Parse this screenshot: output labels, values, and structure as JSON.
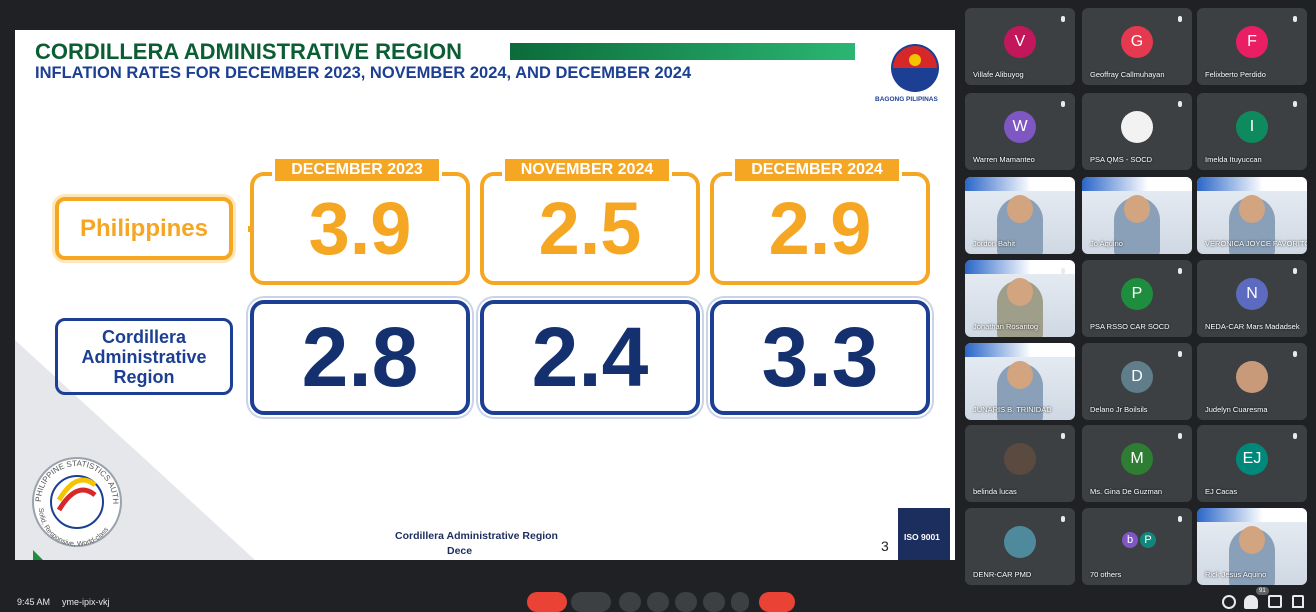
{
  "slide": {
    "title": "CORDILLERA ADMINISTRATIVE REGION",
    "subtitle": "INFLATION RATES FOR DECEMBER 2023, NOVEMBER 2024, AND DECEMBER 2024",
    "logo_caption": "BAGONG PILIPINAS",
    "columns": [
      "DECEMBER 2023",
      "NOVEMBER 2024",
      "DECEMBER 2024"
    ],
    "rows": [
      {
        "label": "Philippines",
        "values": [
          3.9,
          2.5,
          2.9
        ]
      },
      {
        "label": "Cordillera Administrative Region",
        "values": [
          2.8,
          2.4,
          3.3
        ]
      }
    ],
    "seal_text": "PHILIPPINE STATISTICS AUTHORITY",
    "seal_motto": "Solid, Responsive, World-class",
    "footer": "Cordillera Administrative Region",
    "footer_date": "Dece",
    "page_number": 3,
    "certification": "ISO 9001"
  },
  "participants": [
    {
      "name": "Villafe Alibuyog",
      "initial": "V",
      "color": "#c2185b"
    },
    {
      "name": "Geoffray Callmuhayan",
      "initial": "G",
      "color": "#e53950"
    },
    {
      "name": "Felixberto Perdido",
      "initial": "F",
      "color": "#e91e63"
    },
    {
      "name": "Warren Mamanteo",
      "initial": "W",
      "color": "#7e57c2"
    },
    {
      "name": "PSA QMS - SOCD",
      "color": "#f2f2f2"
    },
    {
      "name": "Imelda Ituyuccan",
      "initial": "I",
      "color": "#0f8a5f"
    },
    {
      "name": "Jordon Bahit",
      "color": "#8aa0b8"
    },
    {
      "name": "Jo Aquino",
      "color": "#8aa0b8"
    },
    {
      "name": "VERONICA JOYCE FAVORITO",
      "color": "#8aa0b8"
    },
    {
      "name": "Jonathan Rosantog",
      "color": "#9e9e8a"
    },
    {
      "name": "PSA RSSO CAR SOCD",
      "initial": "P",
      "color": "#1e8e3e"
    },
    {
      "name": "NEDA-CAR Mars Madadsek",
      "initial": "N",
      "color": "#5c6bc0"
    },
    {
      "name": "JUNARIS B. TRINIDAD",
      "color": "#8aa0b8"
    },
    {
      "name": "Delano Jr Boilsils",
      "initial": "D",
      "color": "#607d8b"
    },
    {
      "name": "Judelyn Cuaresma",
      "color": "#c89a7a"
    },
    {
      "name": "belinda lucas",
      "color": "#5a4a40"
    },
    {
      "name": "Ms. Gina De Guzman",
      "initial": "M",
      "color": "#2e7d32"
    },
    {
      "name": "EJ Cacas",
      "initial": "EJ",
      "color": "#00897b"
    },
    {
      "name": "DENR-CAR PMD",
      "color": "#4f8a9c"
    },
    {
      "name": "70 others",
      "initials": [
        "b",
        "P"
      ],
      "colors": [
        "#7e57c2",
        "#12867a"
      ]
    },
    {
      "name": "Rick Jesus Aquino",
      "color": "#8aa0b8"
    }
  ],
  "meeting": {
    "time": "9:45 AM",
    "code": "yme-ipix-vkj",
    "participant_count": 91
  }
}
